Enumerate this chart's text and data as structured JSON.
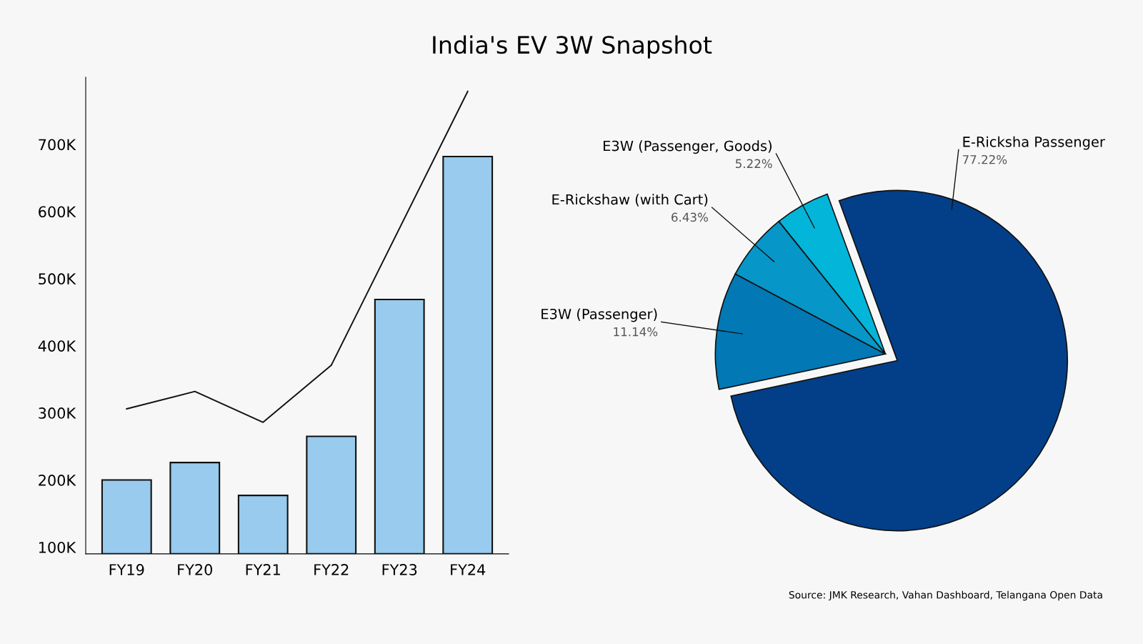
{
  "chart_data": [
    {
      "type": "bar",
      "title": "India's EV 3W Snapshot",
      "categories": [
        "FY19",
        "FY20",
        "FY21",
        "FY22",
        "FY23",
        "FY24"
      ],
      "series": [
        {
          "type": "bar",
          "color": "#98cbed",
          "values": [
            200000,
            226000,
            177000,
            265000,
            469000,
            682000
          ]
        },
        {
          "type": "line",
          "color": "#111111",
          "values": [
            306000,
            332000,
            286000,
            371000,
            null,
            779000
          ]
        }
      ],
      "ylim": [
        90000,
        800000
      ],
      "yticks": [
        {
          "value": 100000,
          "label": "100K"
        },
        {
          "value": 200000,
          "label": "200K"
        },
        {
          "value": 300000,
          "label": "300K"
        },
        {
          "value": 400000,
          "label": "400K"
        },
        {
          "value": 500000,
          "label": "500K"
        },
        {
          "value": 600000,
          "label": "600K"
        },
        {
          "value": 700000,
          "label": "700K"
        }
      ],
      "grid": false,
      "legend": false
    },
    {
      "type": "pie",
      "categories": [
        "E-Ricksha Passenger",
        "E3W (Passenger)",
        "E-Rickshaw (with Cart)",
        "E3W (Passenger, Goods)"
      ],
      "values": [
        77.22,
        11.14,
        6.43,
        5.22
      ],
      "colors": [
        "#033f88",
        "#0278b5",
        "#0796c8",
        "#02b5d9"
      ],
      "value_labels": [
        "77.22%",
        "11.14%",
        "6.43%",
        "5.22%"
      ],
      "annotations": [
        "Source: JMK Research, Vahan Dashboard, Telangana Open Data"
      ]
    }
  ]
}
